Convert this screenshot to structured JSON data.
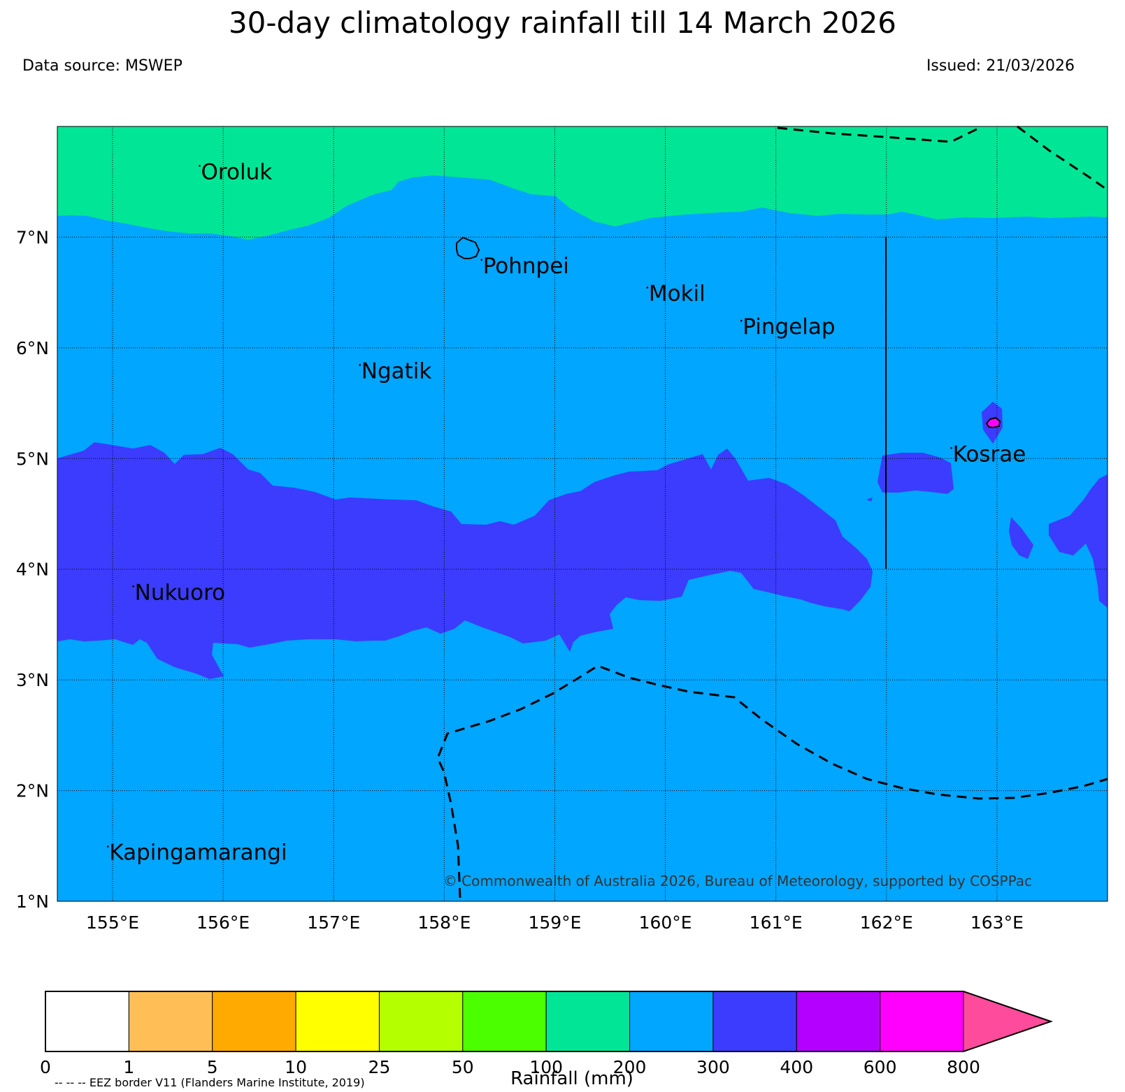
{
  "header": {
    "title": "30-day climatology rainfall till 14 March 2026",
    "source": "Data source: MSWEP",
    "issued": "Issued: 21/03/2026"
  },
  "map": {
    "lon_range": [
      154.5,
      164.0
    ],
    "lat_range": [
      1.0,
      8.0
    ],
    "lon_ticks": [
      "155°E",
      "156°E",
      "157°E",
      "158°E",
      "159°E",
      "160°E",
      "161°E",
      "162°E",
      "163°E"
    ],
    "lat_ticks": [
      "1°N",
      "2°N",
      "3°N",
      "4°N",
      "5°N",
      "6°N",
      "7°N"
    ],
    "gridlines": true,
    "places": [
      {
        "name": "Oroluk",
        "lon": 155.8,
        "lat": 7.55
      },
      {
        "name": "Pohnpei",
        "lon": 158.35,
        "lat": 6.7
      },
      {
        "name": "Mokil",
        "lon": 159.85,
        "lat": 6.45
      },
      {
        "name": "Pingelap",
        "lon": 160.7,
        "lat": 6.15
      },
      {
        "name": "Ngatik",
        "lon": 157.25,
        "lat": 5.75
      },
      {
        "name": "Kosrae",
        "lon": 162.6,
        "lat": 5.0
      },
      {
        "name": "Nukuoro",
        "lon": 155.2,
        "lat": 3.75
      },
      {
        "name": "Kapingamarangi",
        "lon": 154.97,
        "lat": 1.4
      }
    ],
    "credit": "© Commonwealth of Australia 2026, Bureau of Meteorology, supported by COSPPac",
    "background_color": "#00a6ff"
  },
  "colorbar": {
    "label": "Rainfall (mm)",
    "ticks": [
      "0",
      "1",
      "5",
      "10",
      "25",
      "50",
      "100",
      "200",
      "300",
      "400",
      "600",
      "800"
    ],
    "colors": [
      "#ffffff",
      "#ffbf56",
      "#ffaa00",
      "#ffff00",
      "#b4ff00",
      "#4cff00",
      "#00e696",
      "#00a6ff",
      "#3c3cff",
      "#b400ff",
      "#ff00ff",
      "#ff4b9b"
    ]
  },
  "legend_note": "-- -- -- EEZ border V11 (Flanders Marine Institute, 2019)"
}
